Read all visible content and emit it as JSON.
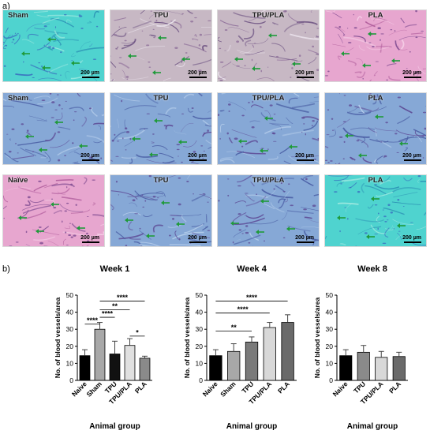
{
  "figure": {
    "panel_a_label": "a)",
    "panel_b_label": "b)"
  },
  "micrographs": {
    "scale_text": "200 µm",
    "rows": [
      [
        {
          "title": "Sham",
          "stain": "cyan"
        },
        {
          "title": "TPU",
          "stain": "pale"
        },
        {
          "title": "TPU/PLA",
          "stain": "pale"
        },
        {
          "title": "PLA",
          "stain": "pink"
        }
      ],
      [
        {
          "title": "Sham",
          "stain": "blue"
        },
        {
          "title": "TPU",
          "stain": "blue"
        },
        {
          "title": "TPU/PLA",
          "stain": "blue"
        },
        {
          "title": "PLA",
          "stain": "blue"
        }
      ],
      [
        {
          "title": "Naïve",
          "stain": "pink"
        },
        {
          "title": "TPU",
          "stain": "blue"
        },
        {
          "title": "TPU/PLA",
          "stain": "blue"
        },
        {
          "title": "PLA",
          "stain": "cyan"
        }
      ]
    ]
  },
  "chart_data": [
    {
      "type": "bar",
      "title": "Week 1",
      "xlabel": "Animal group",
      "ylabel": "No. of blood vessels/area",
      "ylim": [
        0,
        50
      ],
      "yticks": [
        0,
        10,
        20,
        30,
        40,
        50
      ],
      "categories": [
        "Naive",
        "Sham",
        "TPU",
        "TPU/PLA",
        "PLA"
      ],
      "values": [
        14.5,
        30,
        15.5,
        20.5,
        13
      ],
      "errors": [
        3.5,
        4,
        7.5,
        4,
        1.2
      ],
      "colors": [
        "#000000",
        "#a8a8a8",
        "#111111",
        "#e0e0e0",
        "#8a8a8a"
      ],
      "significance": [
        {
          "from": 1,
          "to": 4,
          "label": "****"
        },
        {
          "from": 1,
          "to": 3,
          "label": "**"
        },
        {
          "from": 1,
          "to": 2,
          "label": "****"
        },
        {
          "from": 0,
          "to": 1,
          "label": "****"
        },
        {
          "from": 3,
          "to": 4,
          "label": "*"
        }
      ]
    },
    {
      "type": "bar",
      "title": "Week 4",
      "xlabel": "Animal group",
      "ylabel": "No. of blood vessels/area",
      "ylim": [
        0,
        50
      ],
      "yticks": [
        0,
        10,
        20,
        30,
        40,
        50
      ],
      "categories": [
        "Naive",
        "Sham",
        "TPU",
        "TPU/PLA",
        "PLA"
      ],
      "values": [
        14.5,
        17,
        22.5,
        31,
        34
      ],
      "errors": [
        3.5,
        4.5,
        3,
        3,
        4.5
      ],
      "colors": [
        "#000000",
        "#a8a8a8",
        "#7a7a7a",
        "#d8d8d8",
        "#6a6a6a"
      ],
      "significance": [
        {
          "from": 0,
          "to": 4,
          "label": "****"
        },
        {
          "from": 0,
          "to": 3,
          "label": "****"
        },
        {
          "from": 0,
          "to": 2,
          "label": "**"
        }
      ]
    },
    {
      "type": "bar",
      "title": "Week 8",
      "xlabel": "Animal group",
      "ylabel": "No. of blood vessels/area",
      "ylim": [
        0,
        50
      ],
      "yticks": [
        0,
        10,
        20,
        30,
        40,
        50
      ],
      "categories": [
        "Naive",
        "TPU",
        "TPU/PLA",
        "PLA"
      ],
      "values": [
        14.5,
        16.5,
        13.5,
        14
      ],
      "errors": [
        3.5,
        4,
        3.5,
        2.5
      ],
      "colors": [
        "#000000",
        "#8a8a8a",
        "#d8d8d8",
        "#6a6a6a"
      ],
      "significance": []
    }
  ]
}
